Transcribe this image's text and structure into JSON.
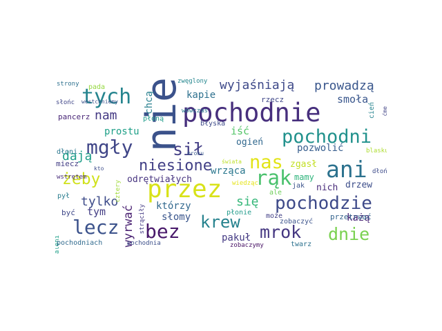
{
  "word_cloud": {
    "words": [
      {
        "text": "pochodnie",
        "color": "#472f7d"
      },
      {
        "text": "nie",
        "color": "#3b528b"
      },
      {
        "text": "przez",
        "color": "#d8e219"
      },
      {
        "text": "ani",
        "color": "#2c728e"
      },
      {
        "text": "pochodni",
        "color": "#21918c"
      },
      {
        "text": "pochodzie",
        "color": "#3e4a89"
      },
      {
        "text": "mgły",
        "color": "#404688"
      },
      {
        "text": "tych",
        "color": "#25848e"
      },
      {
        "text": "rąk",
        "color": "#4ac16d"
      },
      {
        "text": "krew",
        "color": "#26828e"
      },
      {
        "text": "mrok",
        "color": "#453781"
      },
      {
        "text": "dnie",
        "color": "#7ad151"
      },
      {
        "text": "lecz",
        "color": "#3b528b"
      },
      {
        "text": "bez",
        "color": "#48186a"
      },
      {
        "text": "nas",
        "color": "#e2e418"
      },
      {
        "text": "żeby",
        "color": "#d0e11c"
      },
      {
        "text": "sił",
        "color": "#433e85"
      },
      {
        "text": "niesione",
        "color": "#424086"
      },
      {
        "text": "wyjaśniają",
        "color": "#3e4989"
      },
      {
        "text": "prowadzą",
        "color": "#39568c"
      },
      {
        "text": "dają",
        "color": "#1f9e89"
      },
      {
        "text": "nam",
        "color": "#443983"
      },
      {
        "text": "tylko",
        "color": "#3e4c8a"
      },
      {
        "text": "wyrwać",
        "color": "#481f70"
      },
      {
        "text": "się",
        "color": "#35b779"
      },
      {
        "text": "kapie",
        "color": "#2d708e"
      },
      {
        "text": "smoła",
        "color": "#39568c"
      },
      {
        "text": "chcą",
        "color": "#277f8e"
      },
      {
        "text": "prostu",
        "color": "#1fa088"
      },
      {
        "text": "iść",
        "color": "#54c568"
      },
      {
        "text": "ogień",
        "color": "#31688e"
      },
      {
        "text": "pozwolić",
        "color": "#365d8d"
      },
      {
        "text": "odrętwiałych",
        "color": "#46337f"
      },
      {
        "text": "wrząca",
        "color": "#2a778e"
      },
      {
        "text": "zgasł",
        "color": "#c2df23"
      },
      {
        "text": "mamy",
        "color": "#2fb47c"
      },
      {
        "text": "nich",
        "color": "#472a7a"
      },
      {
        "text": "drzew",
        "color": "#3d4e8a"
      },
      {
        "text": "tym",
        "color": "#433d84"
      },
      {
        "text": "którzy",
        "color": "#31688e"
      },
      {
        "text": "słomy",
        "color": "#39558c"
      },
      {
        "text": "pakuł",
        "color": "#443a83"
      },
      {
        "text": "każą",
        "color": "#482475"
      },
      {
        "text": "strony",
        "color": "#2d708e"
      },
      {
        "text": "pada",
        "color": "#95d840"
      },
      {
        "text": "zwęglony",
        "color": "#24868e"
      },
      {
        "text": "słońc",
        "color": "#404688"
      },
      {
        "text": "westchniemy",
        "color": "#3b528b"
      },
      {
        "text": "wówczas",
        "color": "#2a788e"
      },
      {
        "text": "pancerz",
        "color": "#482576"
      },
      {
        "text": "płoną",
        "color": "#1e9b8a"
      },
      {
        "text": "rzecz",
        "color": "#3f4788"
      },
      {
        "text": "cień",
        "color": "#25838e"
      },
      {
        "text": "ćmę",
        "color": "#414487"
      },
      {
        "text": "błyska",
        "color": "#3e4a89"
      },
      {
        "text": "dłoni",
        "color": "#2a768e"
      },
      {
        "text": "miecz",
        "color": "#433e85"
      },
      {
        "text": "mroku",
        "color": "#38588c"
      },
      {
        "text": "świata",
        "color": "#bddf26"
      },
      {
        "text": "blasku",
        "color": "#addc30"
      },
      {
        "text": "dłoń",
        "color": "#3e4c8a"
      },
      {
        "text": "kto",
        "color": "#3d4d8a"
      },
      {
        "text": "wstrętem",
        "color": "#472c7a"
      },
      {
        "text": "cztery",
        "color": "#a0da39"
      },
      {
        "text": "wiedząc",
        "color": "#e5e419"
      },
      {
        "text": "ale",
        "color": "#6ece58"
      },
      {
        "text": "jak",
        "color": "#3a538b"
      },
      {
        "text": "pył",
        "color": "#287c8e"
      },
      {
        "text": "strąciły",
        "color": "#443b84"
      },
      {
        "text": "płonie",
        "color": "#1f9a8a"
      },
      {
        "text": "może",
        "color": "#424086"
      },
      {
        "text": "być",
        "color": "#3f4889"
      },
      {
        "text": "zobaczyć",
        "color": "#3b528b"
      },
      {
        "text": "przetrwać",
        "color": "#33638d"
      },
      {
        "text": "wypaleni",
        "color": "#1f9f88"
      },
      {
        "text": "pochodniach",
        "color": "#306a8e"
      },
      {
        "text": "pochodnia",
        "color": "#3c4f8a"
      },
      {
        "text": "zobaczymy",
        "color": "#471164"
      },
      {
        "text": "twarz",
        "color": "#2c718e"
      }
    ]
  }
}
